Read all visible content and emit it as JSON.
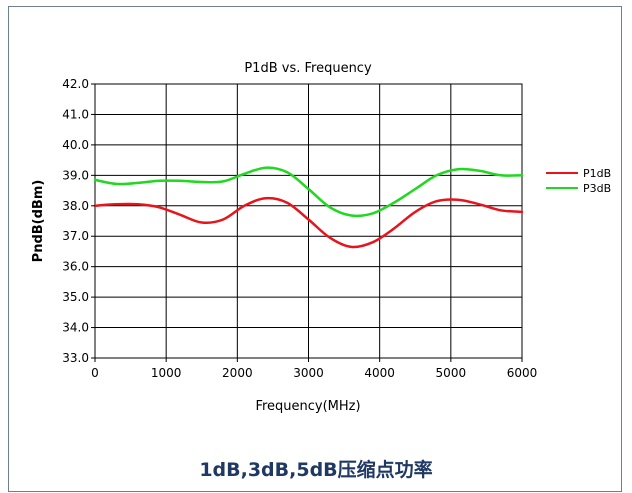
{
  "caption": "1dB,3dB,5dB压缩点功率",
  "chart_data": {
    "type": "line",
    "title": "P1dB vs. Frequency",
    "xlabel": "Frequency(MHz)",
    "ylabel": "PndB(dBm)",
    "xlim": [
      0,
      6000
    ],
    "ylim": [
      33.0,
      42.0
    ],
    "x_ticks": [
      "0",
      "1000",
      "2000",
      "3000",
      "4000",
      "5000",
      "6000"
    ],
    "y_ticks": [
      "33.0",
      "34.0",
      "35.0",
      "36.0",
      "37.0",
      "38.0",
      "39.0",
      "40.0",
      "41.0",
      "42.0"
    ],
    "grid": true,
    "legend_position": "right",
    "series": [
      {
        "name": "P1dB",
        "color": "#e8141c",
        "x": [
          0,
          300,
          600,
          900,
          1200,
          1500,
          1800,
          2100,
          2400,
          2700,
          3000,
          3300,
          3600,
          3900,
          4200,
          4500,
          4800,
          5100,
          5400,
          5700,
          6000
        ],
        "values": [
          38.0,
          38.05,
          38.05,
          37.95,
          37.7,
          37.45,
          37.55,
          38.0,
          38.25,
          38.1,
          37.55,
          36.95,
          36.65,
          36.8,
          37.25,
          37.8,
          38.15,
          38.2,
          38.05,
          37.85,
          37.8
        ]
      },
      {
        "name": "P3dB",
        "color": "#1fd81f",
        "x": [
          0,
          300,
          600,
          900,
          1200,
          1500,
          1800,
          2100,
          2400,
          2700,
          3000,
          3300,
          3600,
          3900,
          4200,
          4500,
          4800,
          5100,
          5400,
          5700,
          6000
        ],
        "values": [
          38.85,
          38.72,
          38.75,
          38.82,
          38.82,
          38.78,
          38.8,
          39.05,
          39.25,
          39.1,
          38.55,
          37.95,
          37.68,
          37.75,
          38.1,
          38.55,
          39.0,
          39.2,
          39.15,
          39.0,
          39.0
        ]
      }
    ]
  }
}
